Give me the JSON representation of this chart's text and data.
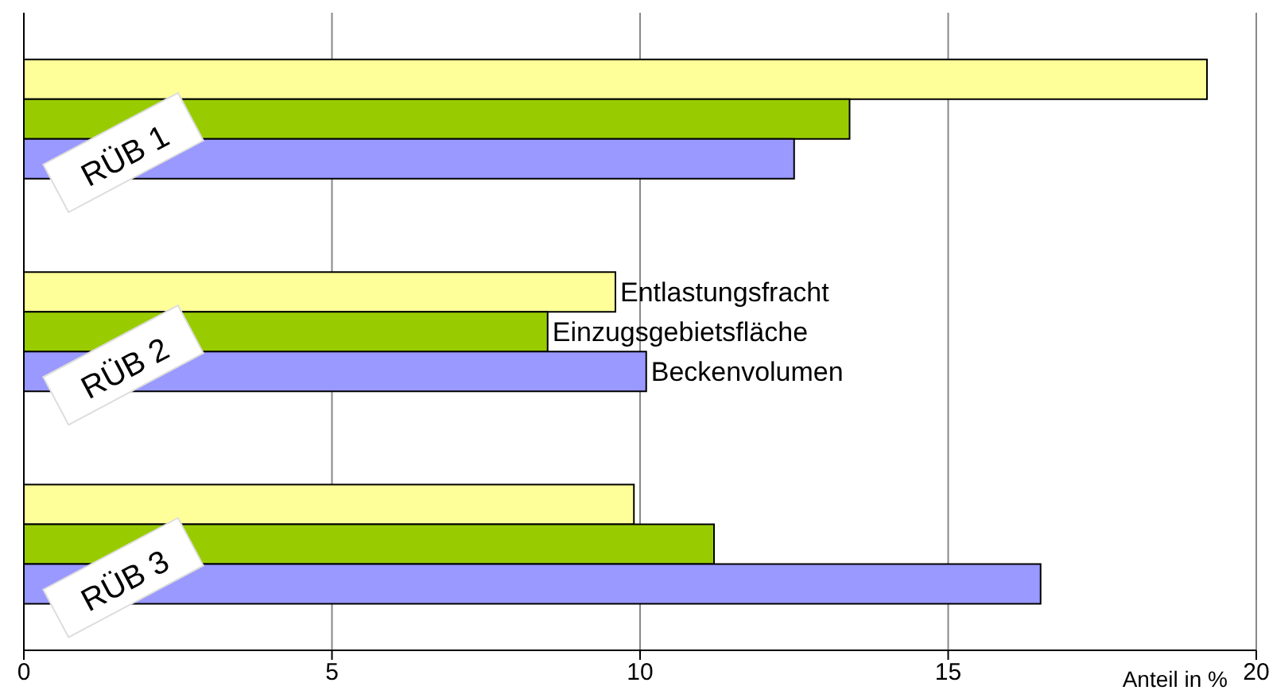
{
  "chart_data": {
    "type": "bar",
    "orientation": "horizontal",
    "xlabel": "Anteil in %",
    "categories": [
      "RÜB 1",
      "RÜB 2",
      "RÜB 3"
    ],
    "series": [
      {
        "name": "Entlastungsfracht",
        "color": "#ffff99",
        "values": [
          19.2,
          9.6,
          9.9
        ]
      },
      {
        "name": "Einzugsgebietsfläche",
        "color": "#99cc00",
        "values": [
          13.4,
          8.5,
          11.2
        ]
      },
      {
        "name": "Beckenvolumen",
        "color": "#9999ff",
        "values": [
          12.5,
          10.1,
          16.5
        ]
      }
    ],
    "xlim": [
      0,
      20
    ],
    "xticks": [
      0,
      5,
      10,
      15,
      20
    ],
    "grid": "x",
    "legend": false
  }
}
